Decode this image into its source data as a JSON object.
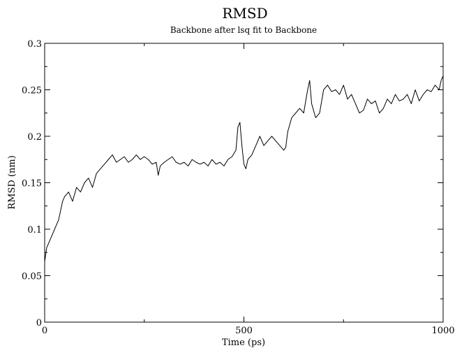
{
  "chart_data": {
    "type": "line",
    "title": "RMSD",
    "subtitle": "Backbone after lsq fit to Backbone",
    "xlabel": "Time (ps)",
    "ylabel": "RMSD (nm)",
    "xlim": [
      0,
      1000
    ],
    "ylim": [
      0,
      0.3
    ],
    "x_ticks": [
      0,
      500,
      1000
    ],
    "x_tick_labels": [
      "0",
      "500",
      "1000"
    ],
    "y_ticks": [
      0,
      0.05,
      0.1,
      0.15,
      0.2,
      0.25,
      0.3
    ],
    "y_tick_labels": [
      "0",
      "0.05",
      "0.1",
      "0.15",
      "0.2",
      "0.25",
      "0.3"
    ],
    "grid": false,
    "legend": "none",
    "series": [
      {
        "color": "#000000",
        "x": [
          0,
          5,
          10,
          15,
          20,
          25,
          30,
          35,
          40,
          45,
          50,
          60,
          70,
          80,
          90,
          100,
          110,
          120,
          130,
          140,
          150,
          160,
          170,
          180,
          190,
          200,
          210,
          220,
          230,
          240,
          250,
          260,
          270,
          280,
          285,
          290,
          300,
          310,
          320,
          330,
          340,
          350,
          360,
          370,
          380,
          390,
          400,
          410,
          420,
          430,
          440,
          450,
          460,
          470,
          480,
          485,
          490,
          495,
          500,
          505,
          510,
          520,
          530,
          540,
          550,
          560,
          570,
          580,
          590,
          600,
          605,
          610,
          620,
          630,
          640,
          650,
          660,
          665,
          670,
          680,
          690,
          700,
          710,
          720,
          730,
          740,
          750,
          760,
          770,
          780,
          790,
          800,
          810,
          820,
          830,
          840,
          850,
          860,
          870,
          880,
          890,
          900,
          910,
          920,
          930,
          940,
          950,
          960,
          970,
          980,
          990,
          995,
          1000
        ],
        "y": [
          0.065,
          0.08,
          0.085,
          0.09,
          0.095,
          0.1,
          0.105,
          0.11,
          0.12,
          0.13,
          0.135,
          0.14,
          0.13,
          0.145,
          0.14,
          0.15,
          0.155,
          0.145,
          0.16,
          0.165,
          0.17,
          0.175,
          0.18,
          0.172,
          0.175,
          0.178,
          0.172,
          0.175,
          0.18,
          0.175,
          0.178,
          0.175,
          0.17,
          0.172,
          0.158,
          0.168,
          0.172,
          0.175,
          0.178,
          0.172,
          0.17,
          0.172,
          0.168,
          0.175,
          0.172,
          0.17,
          0.172,
          0.168,
          0.175,
          0.17,
          0.172,
          0.168,
          0.175,
          0.178,
          0.185,
          0.21,
          0.215,
          0.19,
          0.17,
          0.165,
          0.175,
          0.18,
          0.19,
          0.2,
          0.19,
          0.195,
          0.2,
          0.195,
          0.19,
          0.185,
          0.188,
          0.205,
          0.22,
          0.225,
          0.23,
          0.225,
          0.25,
          0.26,
          0.235,
          0.22,
          0.225,
          0.25,
          0.255,
          0.248,
          0.25,
          0.245,
          0.255,
          0.24,
          0.245,
          0.235,
          0.225,
          0.228,
          0.24,
          0.235,
          0.238,
          0.225,
          0.23,
          0.24,
          0.235,
          0.245,
          0.238,
          0.24,
          0.245,
          0.235,
          0.25,
          0.238,
          0.245,
          0.25,
          0.248,
          0.255,
          0.25,
          0.26,
          0.265
        ]
      }
    ]
  }
}
